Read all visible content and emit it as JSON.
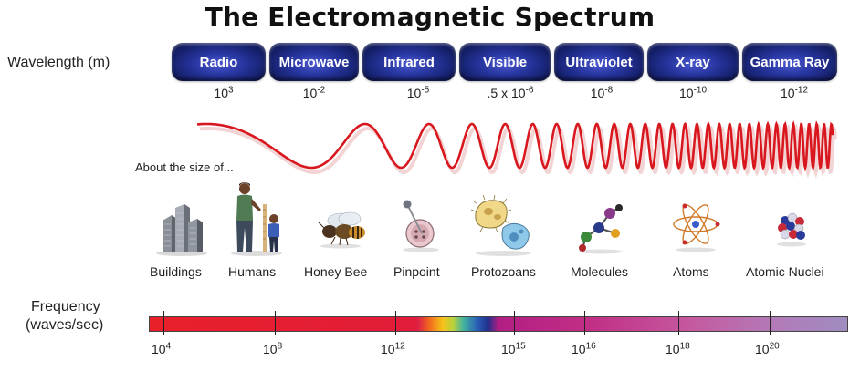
{
  "title": "The Electromagnetic Spectrum",
  "wavelength_label": "Wavelength (m)",
  "bands": [
    {
      "name": "Radio",
      "base": "10",
      "exp": "3"
    },
    {
      "name": "Microwave",
      "base": "10",
      "exp": "-2"
    },
    {
      "name": "Infrared",
      "base": "10",
      "exp": "-5"
    },
    {
      "name": "Visible",
      "base": ".5 x 10",
      "exp": "-6"
    },
    {
      "name": "Ultraviolet",
      "base": "10",
      "exp": "-8"
    },
    {
      "name": "X-ray",
      "base": "10",
      "exp": "-10"
    },
    {
      "name": "Gamma Ray",
      "base": "10",
      "exp": "-12"
    }
  ],
  "about_label": "About the size of...",
  "objects": [
    {
      "label": "Buildings",
      "icon": "buildings-icon"
    },
    {
      "label": "Humans",
      "icon": "humans-icon"
    },
    {
      "label": "Honey Bee",
      "icon": "honey-bee-icon"
    },
    {
      "label": "Pinpoint",
      "icon": "pinpoint-icon"
    },
    {
      "label": "Protozoans",
      "icon": "protozoans-icon"
    },
    {
      "label": "Molecules",
      "icon": "molecules-icon"
    },
    {
      "label": "Atoms",
      "icon": "atom-icon"
    },
    {
      "label": "Atomic Nuclei",
      "icon": "atomic-nucleus-icon"
    }
  ],
  "frequency_label": {
    "line1": "Frequency",
    "line2": "(waves/sec)"
  },
  "frequency_ticks": [
    {
      "base": "10",
      "exp": "4"
    },
    {
      "base": "10",
      "exp": "8"
    },
    {
      "base": "10",
      "exp": "12"
    },
    {
      "base": "10",
      "exp": "15"
    },
    {
      "base": "10",
      "exp": "16"
    },
    {
      "base": "10",
      "exp": "18"
    },
    {
      "base": "10",
      "exp": "20"
    }
  ],
  "colors": {
    "band": "#1f2a86",
    "wave": "#d8181e"
  }
}
